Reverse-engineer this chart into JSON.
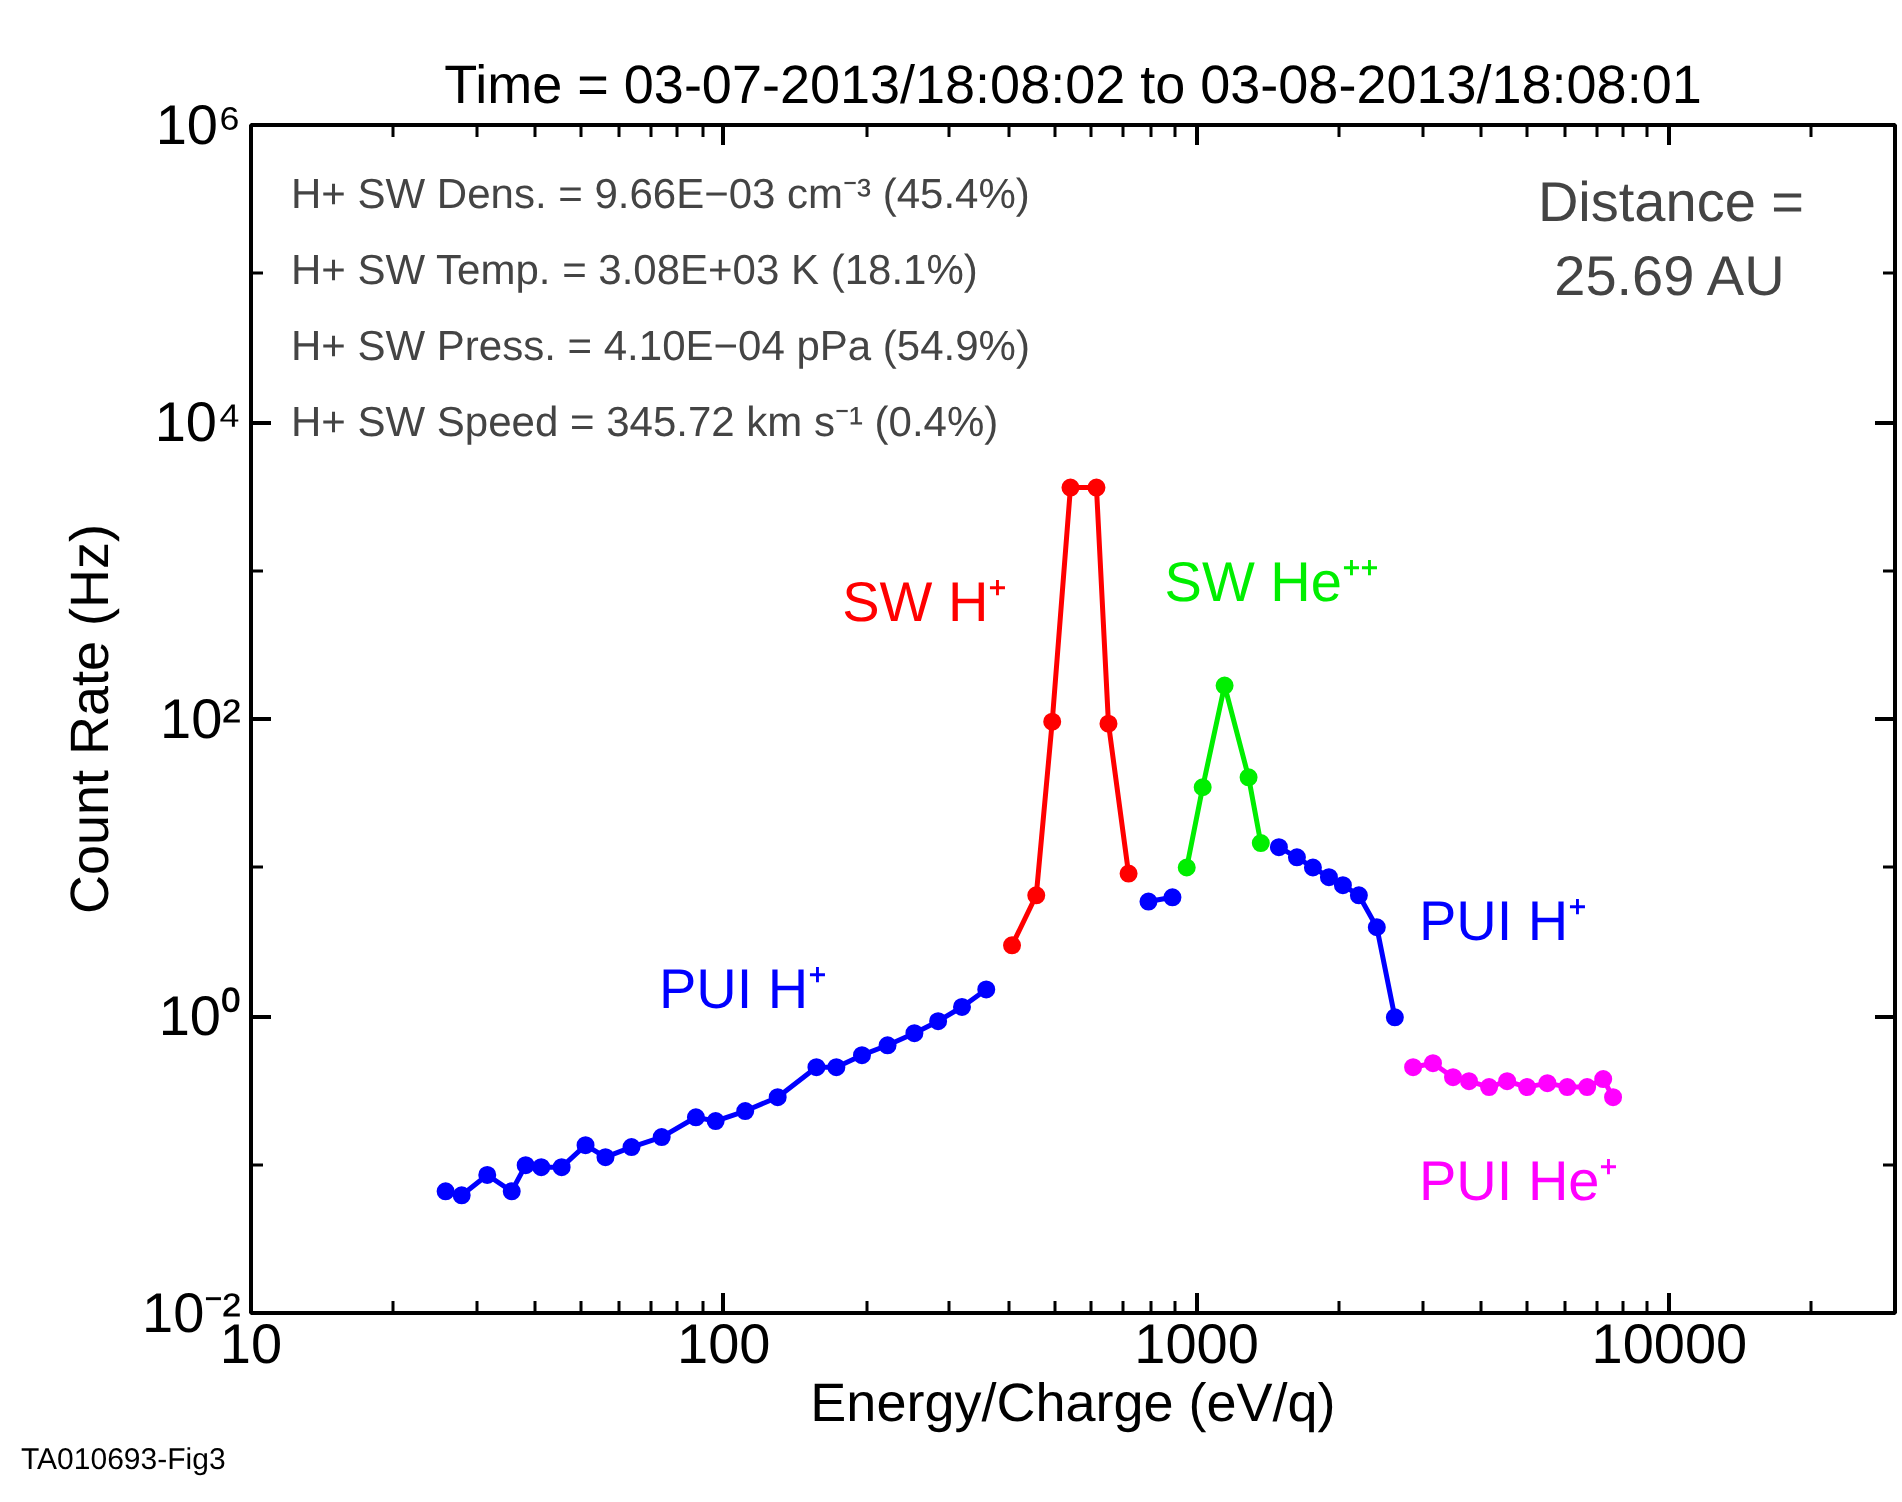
{
  "chart_data": {
    "type": "line",
    "title": "Time = 03-07-2013/18:08:02 to 03-08-2013/18:08:01",
    "xlabel": "Energy/Charge (eV/q)",
    "ylabel": "Count Rate (Hz)",
    "log": "xy",
    "xlim": [
      10,
      30000
    ],
    "ylim": [
      0.01,
      1000000
    ],
    "xticks": [
      10,
      100,
      1000,
      10000
    ],
    "yticks": [
      {
        "value": 0.01,
        "label": "10⁻²"
      },
      {
        "value": 1,
        "label": "10⁰"
      },
      {
        "value": 100,
        "label": "10²"
      },
      {
        "value": 10000,
        "label": "10⁴"
      },
      {
        "value": 1000000,
        "label": "10⁶"
      }
    ],
    "grid": false,
    "legend": false,
    "marker": "circle",
    "line_style": "solid",
    "series": [
      {
        "name": "PUI H⁺",
        "color": "#0000ff",
        "x": [
          25.8,
          27.9,
          31.6,
          35.6,
          38.1,
          41.1,
          45.4,
          51.0,
          56.2,
          63.8,
          73.9,
          87.3,
          96.1,
          111,
          130,
          157,
          173,
          196,
          222,
          253,
          284,
          319,
          359
        ],
        "values": [
          0.066,
          0.062,
          0.085,
          0.066,
          0.099,
          0.096,
          0.096,
          0.135,
          0.112,
          0.131,
          0.153,
          0.208,
          0.196,
          0.229,
          0.284,
          0.452,
          0.452,
          0.545,
          0.635,
          0.766,
          0.923,
          1.15,
          1.51
        ]
      },
      {
        "name": "SW H⁺",
        "color": "#ff0000",
        "x": [
          407,
          458,
          495,
          541,
          614,
          651,
          718
        ],
        "values": [
          2.99,
          6.5,
          96,
          3620,
          3620,
          93,
          9.1
        ]
      },
      {
        "color": "#0000ff",
        "x": [
          791,
          889
        ],
        "values": [
          5.9,
          6.3
        ]
      },
      {
        "name": "SW He⁺⁺",
        "color": "#00ee00",
        "x": [
          953,
          1030,
          1146,
          1288,
          1367
        ],
        "values": [
          10.0,
          34.7,
          168,
          40.5,
          14.6
        ]
      },
      {
        "name": "PUI H⁺",
        "color": "#0000ff",
        "x": [
          1493,
          1630,
          1762,
          1905,
          2039,
          2204,
          2405,
          2626
        ],
        "values": [
          13.7,
          11.7,
          10.0,
          8.6,
          7.6,
          6.5,
          3.96,
          0.98
        ]
      },
      {
        "name": "PUI He⁺",
        "color": "#ff00ff",
        "x": [
          2870,
          3162,
          3486,
          3768,
          4155,
          4537,
          5000,
          5520,
          6081,
          6699,
          7244,
          7600
        ],
        "values": [
          0.452,
          0.481,
          0.387,
          0.364,
          0.332,
          0.364,
          0.332,
          0.353,
          0.332,
          0.332,
          0.376,
          0.284
        ]
      }
    ],
    "annotations": [
      "H+ SW Dens. = 9.66E−03 cm⁻³ (45.4%)",
      "H+ SW Temp. = 3.08E+03 K (18.1%)",
      "H+ SW Press. = 4.10E−04 pPa (54.9%)",
      "H+ SW Speed = 345.72 km s⁻¹ (0.4%)",
      "Distance =\n25.69 AU",
      "TA010693-Fig3"
    ]
  }
}
